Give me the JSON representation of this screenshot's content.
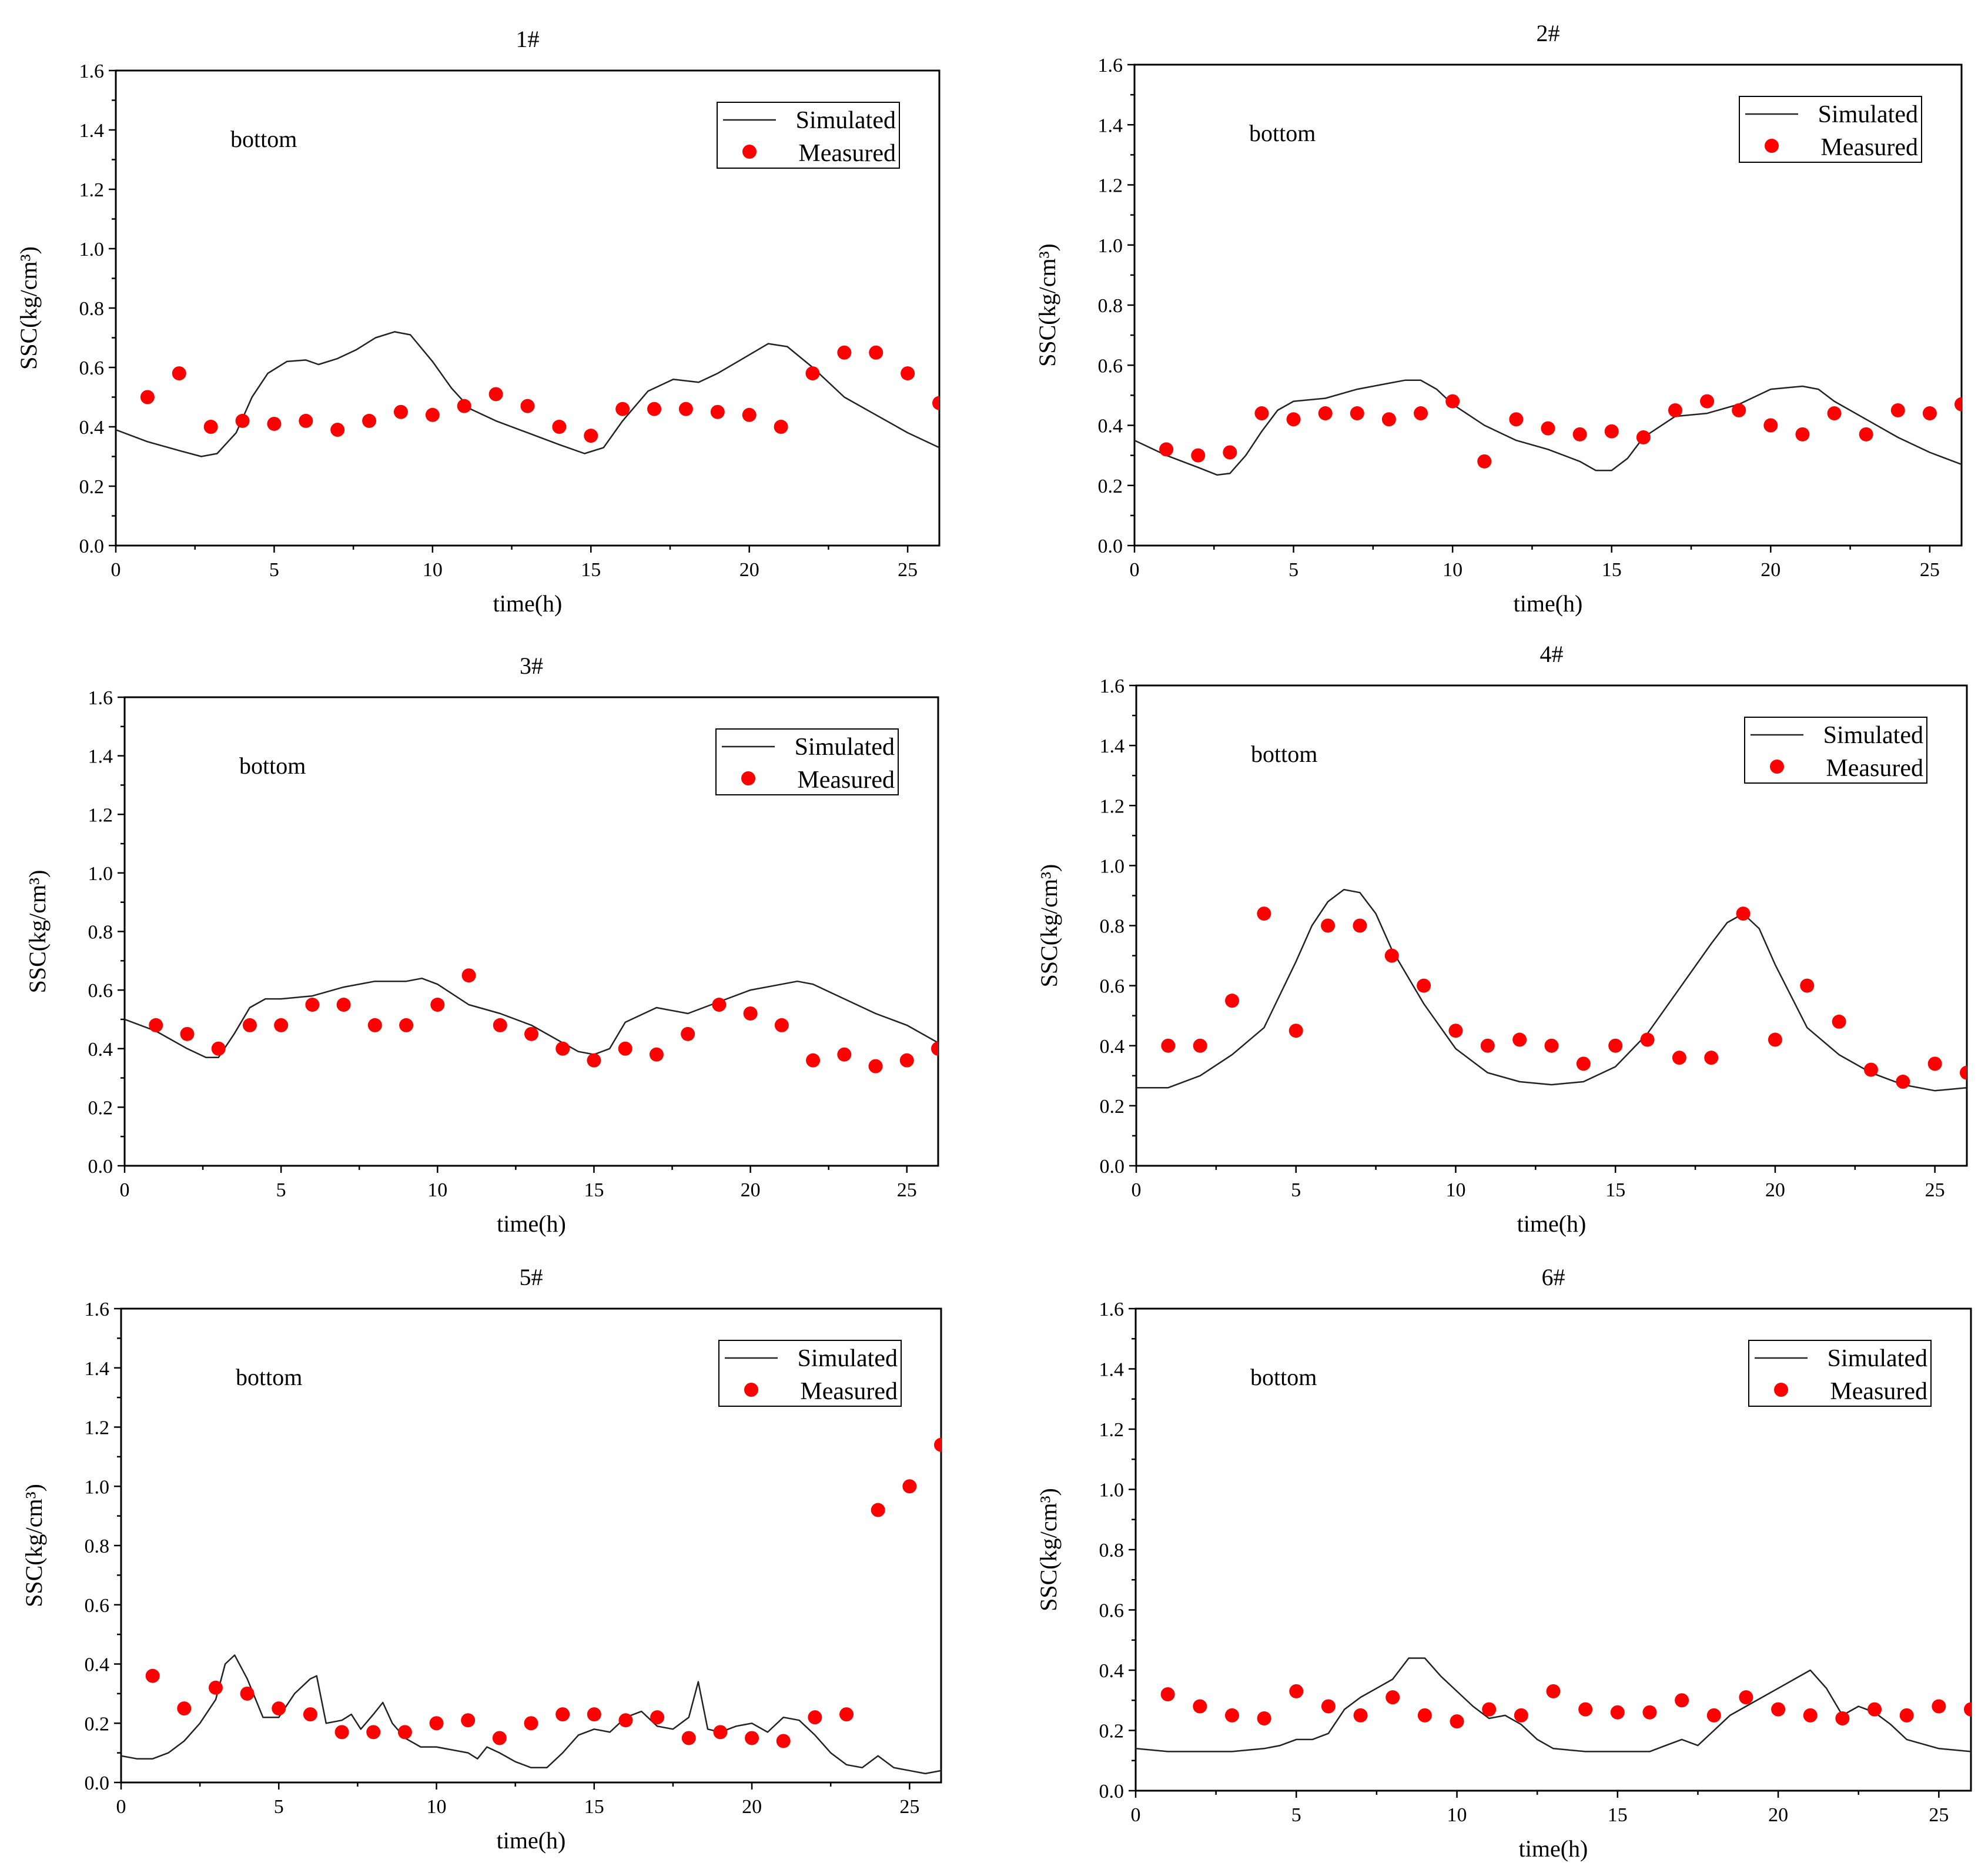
{
  "chart_data": [
    {
      "type": "line",
      "title": "1#",
      "xlabel": "time(h)",
      "ylabel": "SSC(kg/cm³)",
      "annotation": "bottom",
      "xlim": [
        0,
        26
      ],
      "ylim": [
        0,
        1.6
      ],
      "xticks": [
        0,
        5,
        10,
        15,
        20,
        25
      ],
      "yticks": [
        0.0,
        0.2,
        0.4,
        0.6,
        0.8,
        1.0,
        1.2,
        1.4,
        1.6
      ],
      "legend": [
        "Simulated",
        "Measured"
      ],
      "series": [
        {
          "name": "Simulated",
          "kind": "line",
          "x": [
            0,
            1,
            2,
            2.7,
            3.2,
            3.8,
            4.3,
            4.8,
            5.4,
            6,
            6.4,
            7,
            7.6,
            8.2,
            8.8,
            9.3,
            10,
            10.6,
            11.2,
            12,
            13,
            14,
            14.8,
            15.4,
            16,
            16.8,
            17.6,
            18.4,
            19,
            19.8,
            20.6,
            21.2,
            22,
            23,
            24,
            25,
            26
          ],
          "y": [
            0.39,
            0.35,
            0.32,
            0.3,
            0.31,
            0.38,
            0.5,
            0.58,
            0.62,
            0.625,
            0.61,
            0.63,
            0.66,
            0.7,
            0.72,
            0.71,
            0.62,
            0.53,
            0.46,
            0.42,
            0.38,
            0.34,
            0.31,
            0.33,
            0.42,
            0.52,
            0.56,
            0.55,
            0.58,
            0.63,
            0.68,
            0.67,
            0.6,
            0.5,
            0.44,
            0.38,
            0.33
          ]
        },
        {
          "name": "Measured",
          "kind": "scatter",
          "x": [
            1,
            2,
            3,
            4,
            5,
            6,
            7,
            8,
            9,
            10,
            11,
            12,
            13,
            14,
            15,
            16,
            17,
            18,
            19,
            20,
            21,
            22,
            23,
            24,
            25,
            26
          ],
          "y": [
            0.5,
            0.58,
            0.4,
            0.42,
            0.41,
            0.42,
            0.39,
            0.42,
            0.45,
            0.44,
            0.47,
            0.51,
            0.47,
            0.4,
            0.37,
            0.46,
            0.46,
            0.46,
            0.45,
            0.44,
            0.4,
            0.58,
            0.65,
            0.65,
            0.58,
            0.48
          ]
        }
      ]
    },
    {
      "type": "line",
      "title": "2#",
      "xlabel": "time(h)",
      "ylabel": "SSC(kg/cm³)",
      "annotation": "bottom",
      "xlim": [
        0,
        26
      ],
      "ylim": [
        0,
        1.6
      ],
      "xticks": [
        0,
        5,
        10,
        15,
        20,
        25
      ],
      "yticks": [
        0.0,
        0.2,
        0.4,
        0.6,
        0.8,
        1.0,
        1.2,
        1.4,
        1.6
      ],
      "legend": [
        "Simulated",
        "Measured"
      ],
      "series": [
        {
          "name": "Simulated",
          "kind": "line",
          "x": [
            0,
            1,
            2,
            2.6,
            3,
            3.5,
            4,
            4.5,
            5,
            6,
            7,
            8,
            8.5,
            9,
            9.5,
            10,
            11,
            12,
            13,
            14,
            14.5,
            15,
            15.5,
            16,
            17,
            18,
            19,
            20,
            21,
            21.5,
            22,
            23,
            24,
            25,
            26
          ],
          "y": [
            0.35,
            0.3,
            0.26,
            0.235,
            0.24,
            0.3,
            0.38,
            0.45,
            0.48,
            0.49,
            0.52,
            0.54,
            0.55,
            0.55,
            0.52,
            0.47,
            0.4,
            0.35,
            0.32,
            0.28,
            0.25,
            0.25,
            0.29,
            0.36,
            0.43,
            0.44,
            0.47,
            0.52,
            0.53,
            0.52,
            0.48,
            0.42,
            0.36,
            0.31,
            0.27
          ]
        },
        {
          "name": "Measured",
          "kind": "scatter",
          "x": [
            1,
            2,
            3,
            4,
            5,
            6,
            7,
            8,
            9,
            10,
            11,
            12,
            13,
            14,
            15,
            16,
            17,
            18,
            19,
            20,
            21,
            22,
            23,
            24,
            25,
            26
          ],
          "y": [
            0.32,
            0.3,
            0.31,
            0.44,
            0.42,
            0.44,
            0.44,
            0.42,
            0.44,
            0.48,
            0.28,
            0.42,
            0.39,
            0.37,
            0.38,
            0.36,
            0.45,
            0.48,
            0.45,
            0.4,
            0.37,
            0.44,
            0.37,
            0.45,
            0.44,
            0.47
          ]
        }
      ]
    },
    {
      "type": "line",
      "title": "3#",
      "xlabel": "time(h)",
      "ylabel": "SSC(kg/cm³)",
      "annotation": "bottom",
      "xlim": [
        0,
        26
      ],
      "ylim": [
        0,
        1.6
      ],
      "xticks": [
        0,
        5,
        10,
        15,
        20,
        25
      ],
      "yticks": [
        0.0,
        0.2,
        0.4,
        0.6,
        0.8,
        1.0,
        1.2,
        1.4,
        1.6
      ],
      "legend": [
        "Simulated",
        "Measured"
      ],
      "series": [
        {
          "name": "Simulated",
          "kind": "line",
          "x": [
            0,
            1,
            2,
            2.6,
            3,
            3.5,
            4,
            4.5,
            5,
            6,
            7,
            8,
            9,
            9.5,
            10,
            11,
            12,
            13,
            14,
            14.5,
            15,
            15.5,
            16,
            17,
            18,
            19,
            20,
            21,
            21.5,
            22,
            23,
            24,
            25,
            26
          ],
          "y": [
            0.5,
            0.46,
            0.4,
            0.37,
            0.37,
            0.45,
            0.54,
            0.57,
            0.57,
            0.58,
            0.61,
            0.63,
            0.63,
            0.64,
            0.62,
            0.55,
            0.52,
            0.48,
            0.42,
            0.39,
            0.38,
            0.4,
            0.49,
            0.54,
            0.52,
            0.56,
            0.6,
            0.62,
            0.63,
            0.62,
            0.57,
            0.52,
            0.48,
            0.42
          ]
        },
        {
          "name": "Measured",
          "kind": "scatter",
          "x": [
            1,
            2,
            3,
            4,
            5,
            6,
            7,
            8,
            9,
            10,
            11,
            12,
            13,
            14,
            15,
            16,
            17,
            18,
            19,
            20,
            21,
            22,
            23,
            24,
            25,
            26
          ],
          "y": [
            0.48,
            0.45,
            0.4,
            0.48,
            0.48,
            0.55,
            0.55,
            0.48,
            0.48,
            0.55,
            0.65,
            0.48,
            0.45,
            0.4,
            0.36,
            0.4,
            0.38,
            0.45,
            0.55,
            0.52,
            0.48,
            0.36,
            0.38,
            0.34,
            0.36,
            0.4
          ]
        }
      ]
    },
    {
      "type": "line",
      "title": "4#",
      "xlabel": "time(h)",
      "ylabel": "SSC(kg/cm³)",
      "annotation": "bottom",
      "xlim": [
        0,
        26
      ],
      "ylim": [
        0,
        1.6
      ],
      "xticks": [
        0,
        5,
        10,
        15,
        20,
        25
      ],
      "yticks": [
        0.0,
        0.2,
        0.4,
        0.6,
        0.8,
        1.0,
        1.2,
        1.4,
        1.6
      ],
      "legend": [
        "Simulated",
        "Measured"
      ],
      "series": [
        {
          "name": "Simulated",
          "kind": "line",
          "x": [
            0,
            1,
            2,
            3,
            4,
            5,
            5.5,
            6,
            6.5,
            7,
            7.5,
            8,
            9,
            10,
            11,
            12,
            13,
            14,
            15,
            16,
            17,
            18,
            18.5,
            19,
            19.5,
            20,
            21,
            22,
            23,
            24,
            25,
            26
          ],
          "y": [
            0.26,
            0.26,
            0.3,
            0.37,
            0.46,
            0.68,
            0.8,
            0.88,
            0.92,
            0.91,
            0.84,
            0.72,
            0.54,
            0.39,
            0.31,
            0.28,
            0.27,
            0.28,
            0.33,
            0.44,
            0.59,
            0.74,
            0.81,
            0.84,
            0.79,
            0.67,
            0.46,
            0.37,
            0.31,
            0.27,
            0.25,
            0.26
          ]
        },
        {
          "name": "Measured",
          "kind": "scatter",
          "x": [
            1,
            2,
            3,
            4,
            5,
            6,
            7,
            8,
            9,
            10,
            11,
            12,
            13,
            14,
            15,
            16,
            17,
            18,
            19,
            20,
            21,
            22,
            23,
            24,
            25,
            26
          ],
          "y": [
            0.4,
            0.4,
            0.55,
            0.84,
            0.45,
            0.8,
            0.8,
            0.7,
            0.6,
            0.45,
            0.4,
            0.42,
            0.4,
            0.34,
            0.4,
            0.42,
            0.36,
            0.36,
            0.84,
            0.42,
            0.6,
            0.48,
            0.32,
            0.28,
            0.34,
            0.31
          ]
        }
      ]
    },
    {
      "type": "line",
      "title": "5#",
      "xlabel": "time(h)",
      "ylabel": "SSC(kg/cm³)",
      "annotation": "bottom",
      "xlim": [
        0,
        26
      ],
      "ylim": [
        0,
        1.6
      ],
      "xticks": [
        0,
        5,
        10,
        15,
        20,
        25
      ],
      "yticks": [
        0.0,
        0.2,
        0.4,
        0.6,
        0.8,
        1.0,
        1.2,
        1.4,
        1.6
      ],
      "legend": [
        "Simulated",
        "Measured"
      ],
      "series": [
        {
          "name": "Simulated",
          "kind": "line",
          "x": [
            0,
            0.5,
            1,
            1.5,
            2,
            2.5,
            3,
            3.3,
            3.6,
            4,
            4.5,
            5,
            5.5,
            6,
            6.2,
            6.5,
            7,
            7.3,
            7.6,
            8,
            8.3,
            8.6,
            9,
            9.5,
            10,
            11,
            11.3,
            11.6,
            12,
            12.5,
            13,
            13.5,
            14,
            14.5,
            15,
            15.5,
            16,
            16.5,
            17,
            17.5,
            18,
            18.3,
            18.6,
            19,
            19.5,
            20,
            20.5,
            21,
            21.5,
            22,
            22.5,
            23,
            23.5,
            24,
            24.5,
            25,
            25.5,
            26
          ],
          "y": [
            0.09,
            0.08,
            0.08,
            0.1,
            0.14,
            0.2,
            0.28,
            0.4,
            0.43,
            0.35,
            0.22,
            0.22,
            0.3,
            0.35,
            0.36,
            0.2,
            0.21,
            0.23,
            0.18,
            0.23,
            0.27,
            0.2,
            0.15,
            0.12,
            0.12,
            0.1,
            0.08,
            0.12,
            0.1,
            0.07,
            0.05,
            0.05,
            0.1,
            0.16,
            0.18,
            0.17,
            0.22,
            0.24,
            0.19,
            0.18,
            0.22,
            0.34,
            0.18,
            0.17,
            0.19,
            0.2,
            0.17,
            0.22,
            0.21,
            0.16,
            0.1,
            0.06,
            0.05,
            0.09,
            0.05,
            0.04,
            0.03,
            0.04
          ]
        },
        {
          "name": "Measured",
          "kind": "scatter",
          "x": [
            1,
            2,
            3,
            4,
            5,
            6,
            7,
            8,
            9,
            10,
            11,
            12,
            13,
            14,
            15,
            16,
            17,
            18,
            19,
            20,
            21,
            22,
            23,
            24,
            25,
            26
          ],
          "y": [
            0.36,
            0.25,
            0.32,
            0.3,
            0.25,
            0.23,
            0.17,
            0.17,
            0.17,
            0.2,
            0.21,
            0.15,
            0.2,
            0.23,
            0.23,
            0.21,
            0.22,
            0.15,
            0.17,
            0.15,
            0.14,
            0.22,
            0.23,
            0.92,
            1.0,
            1.14
          ]
        }
      ]
    },
    {
      "type": "line",
      "title": "6#",
      "xlabel": "time(h)",
      "ylabel": "SSC(kg/cm³)",
      "annotation": "bottom",
      "xlim": [
        0,
        26
      ],
      "ylim": [
        0,
        1.6
      ],
      "xticks": [
        0,
        5,
        10,
        15,
        20,
        25
      ],
      "yticks": [
        0.0,
        0.2,
        0.4,
        0.6,
        0.8,
        1.0,
        1.2,
        1.4,
        1.6
      ],
      "legend": [
        "Simulated",
        "Measured"
      ],
      "series": [
        {
          "name": "Simulated",
          "kind": "line",
          "x": [
            0,
            1,
            2,
            3,
            4,
            4.5,
            5,
            5.5,
            6,
            6.5,
            7,
            7.5,
            8,
            8.5,
            9,
            9.5,
            10,
            10.5,
            11,
            11.5,
            12,
            12.5,
            13,
            14,
            15,
            16,
            16.5,
            17,
            17.5,
            18,
            18.5,
            19,
            19.5,
            20,
            20.5,
            21,
            21.5,
            22,
            22.5,
            23,
            23.5,
            24,
            25,
            26
          ],
          "y": [
            0.14,
            0.13,
            0.13,
            0.13,
            0.14,
            0.15,
            0.17,
            0.17,
            0.19,
            0.27,
            0.31,
            0.34,
            0.37,
            0.44,
            0.44,
            0.38,
            0.33,
            0.28,
            0.24,
            0.25,
            0.22,
            0.17,
            0.14,
            0.13,
            0.13,
            0.13,
            0.15,
            0.17,
            0.15,
            0.2,
            0.25,
            0.28,
            0.31,
            0.34,
            0.37,
            0.4,
            0.34,
            0.25,
            0.28,
            0.26,
            0.22,
            0.17,
            0.14,
            0.13
          ]
        },
        {
          "name": "Measured",
          "kind": "scatter",
          "x": [
            1,
            2,
            3,
            4,
            5,
            6,
            7,
            8,
            9,
            10,
            11,
            12,
            13,
            14,
            15,
            16,
            17,
            18,
            19,
            20,
            21,
            22,
            23,
            24,
            25,
            26
          ],
          "y": [
            0.32,
            0.28,
            0.25,
            0.24,
            0.33,
            0.28,
            0.25,
            0.31,
            0.25,
            0.23,
            0.27,
            0.25,
            0.33,
            0.27,
            0.26,
            0.26,
            0.3,
            0.25,
            0.31,
            0.27,
            0.25,
            0.24,
            0.27,
            0.25,
            0.28,
            0.27
          ]
        }
      ]
    }
  ],
  "style": {
    "measured_color": "#ff0000",
    "simulated_color": "#222222"
  }
}
